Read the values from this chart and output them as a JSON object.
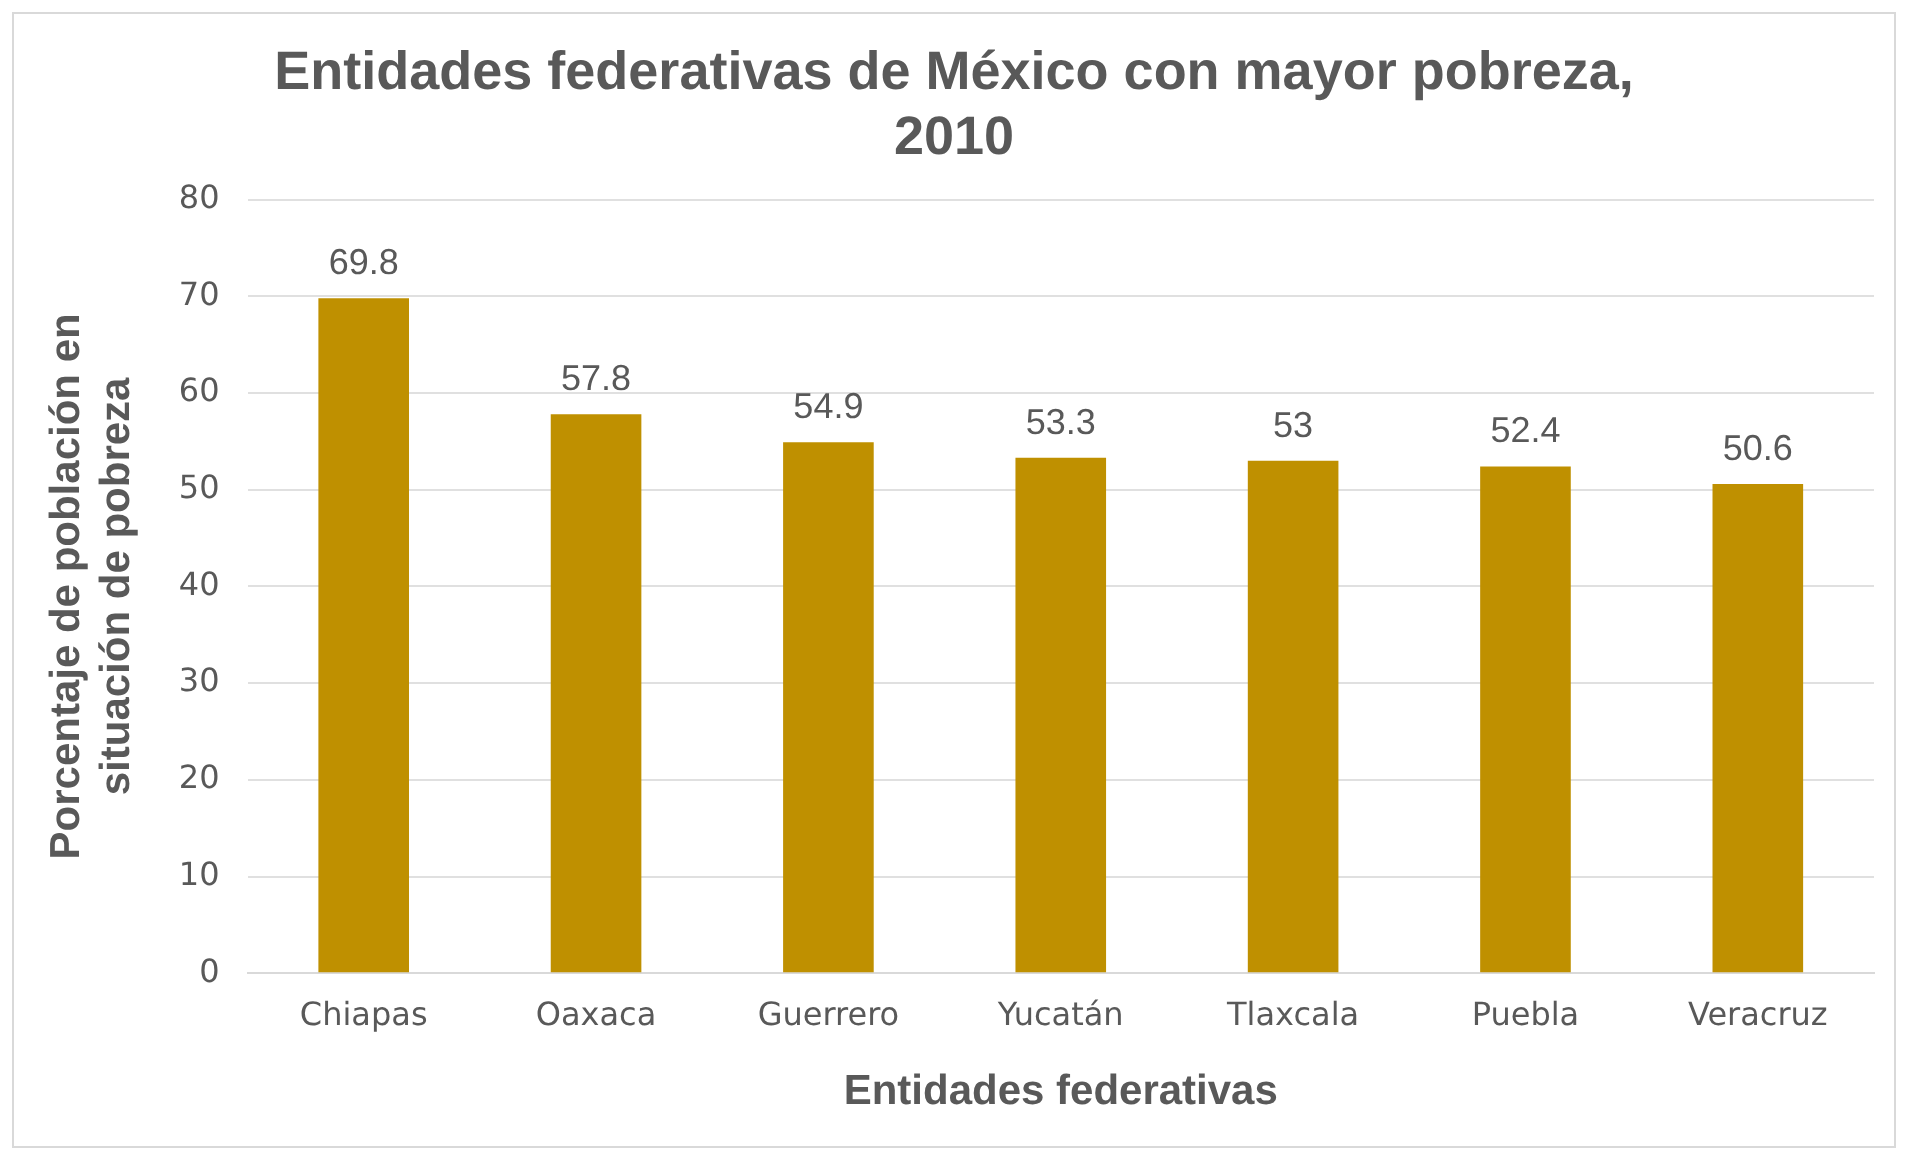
{
  "chart_data": {
    "type": "bar",
    "title": "Entidades federativas de México con mayor pobreza, 2010",
    "xlabel": "Entidades federativas",
    "ylabel": "Porcentaje de población en situación de pobreza",
    "categories": [
      "Chiapas",
      "Oaxaca",
      "Guerrero",
      "Yucatán",
      "Tlaxcala",
      "Puebla",
      "Veracruz"
    ],
    "values": [
      69.8,
      57.8,
      54.9,
      53.3,
      53,
      52.4,
      50.6
    ],
    "color": "#bf9000",
    "ylim": [
      0,
      80
    ],
    "yticks": [
      0,
      10,
      20,
      30,
      40,
      50,
      60,
      70,
      80
    ],
    "grid": "y",
    "data_labels": true,
    "legend": false
  }
}
